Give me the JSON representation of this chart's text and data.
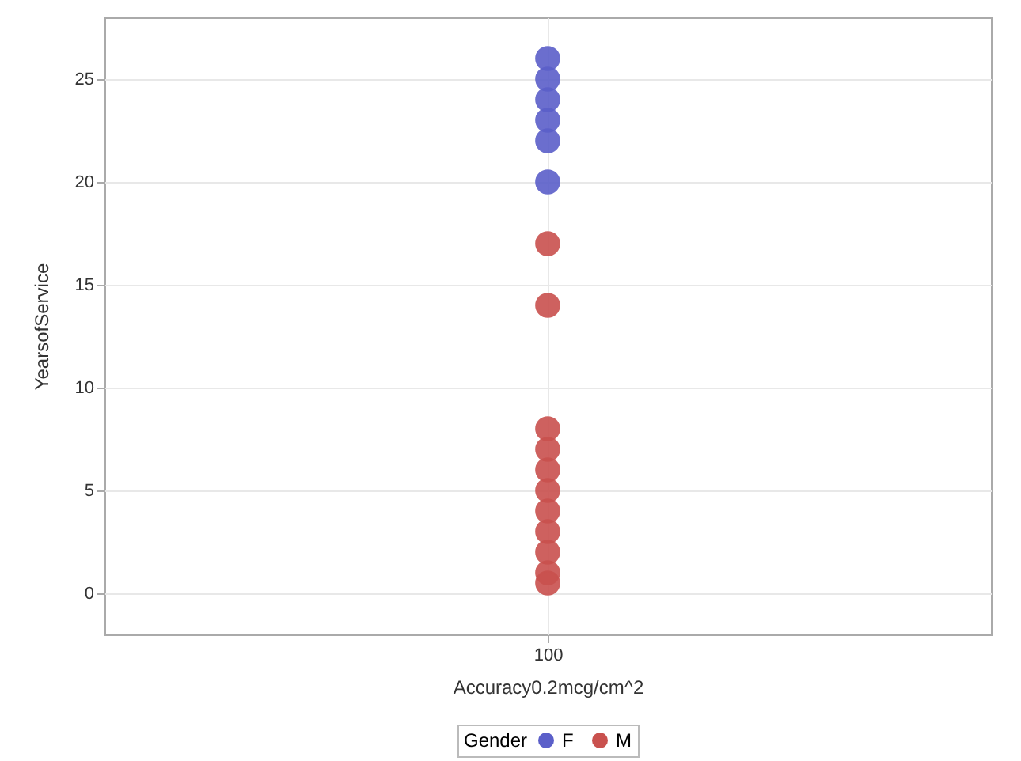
{
  "chart_data": {
    "type": "scatter",
    "xlabel": "Accuracy0.2mcg/cm^2",
    "ylabel": "YearsofService",
    "legend_title": "Gender",
    "categories": [
      "100"
    ],
    "series": [
      {
        "name": "F",
        "color": "#5b5fc9",
        "x": [
          "100",
          "100",
          "100",
          "100",
          "100",
          "100"
        ],
        "values": [
          26,
          25,
          24,
          23,
          22,
          20
        ]
      },
      {
        "name": "M",
        "color": "#c9514e",
        "x": [
          "100",
          "100",
          "100",
          "100",
          "100",
          "100",
          "100",
          "100",
          "100",
          "100",
          "100"
        ],
        "values": [
          17,
          14,
          8,
          7,
          6,
          5,
          4,
          3,
          2,
          1,
          0.5
        ]
      }
    ],
    "ylim": [
      -2,
      28
    ],
    "yticks": [
      0,
      5,
      10,
      15,
      20,
      25
    ],
    "grid": true,
    "legend": "bottom",
    "marker": "circle"
  }
}
